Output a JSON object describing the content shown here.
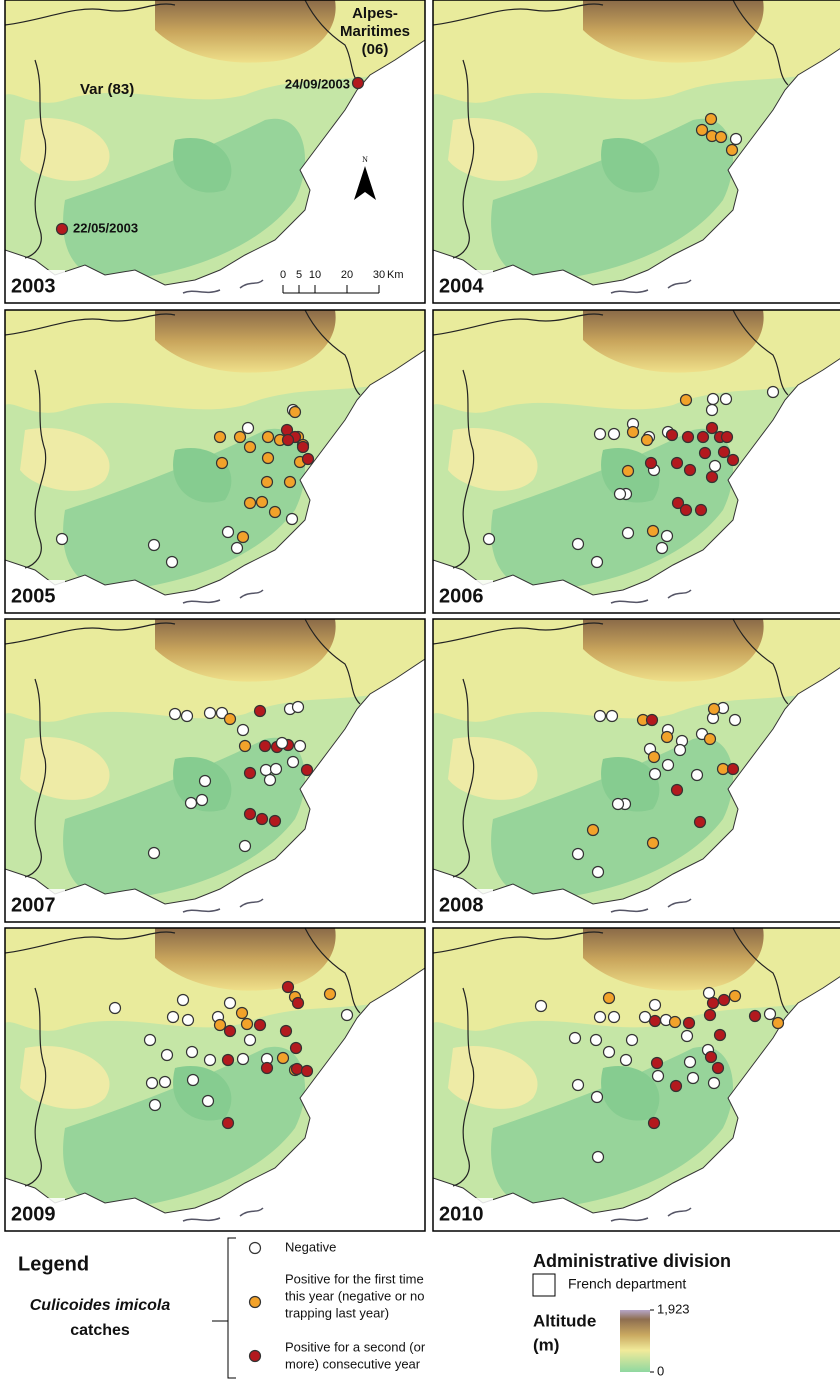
{
  "panels": [
    {
      "year": "2003"
    },
    {
      "year": "2004"
    },
    {
      "year": "2005"
    },
    {
      "year": "2006"
    },
    {
      "year": "2007"
    },
    {
      "year": "2008"
    },
    {
      "year": "2009"
    },
    {
      "year": "2010"
    }
  ],
  "annotations": {
    "var": "Var (83)",
    "alpes": [
      "Alpes-",
      "Maritimes",
      "(06)"
    ],
    "first_date": "24/09/2003",
    "second_date": "22/05/2003",
    "north": "N"
  },
  "scale_bar": {
    "ticks": [
      0,
      5,
      10,
      20,
      30
    ],
    "unit": "Km"
  },
  "legend": {
    "title": "Legend",
    "subject": "Culicoides imicola",
    "subject_suffix": "catches",
    "keys": [
      {
        "lines": [
          "Negative"
        ]
      },
      {
        "lines": [
          "Positive for the first time",
          "this year (negative or no",
          "trapping last year)"
        ]
      },
      {
        "lines": [
          "Positive for a second (or",
          "more) consecutive year"
        ]
      }
    ],
    "admin_title": "Administrative division",
    "admin_item": "French department",
    "altitude": {
      "title": "Altitude",
      "unit": "(m)",
      "ticks": [
        {
          "value": 1923,
          "label": "1,923"
        },
        0
      ]
    }
  }
}
